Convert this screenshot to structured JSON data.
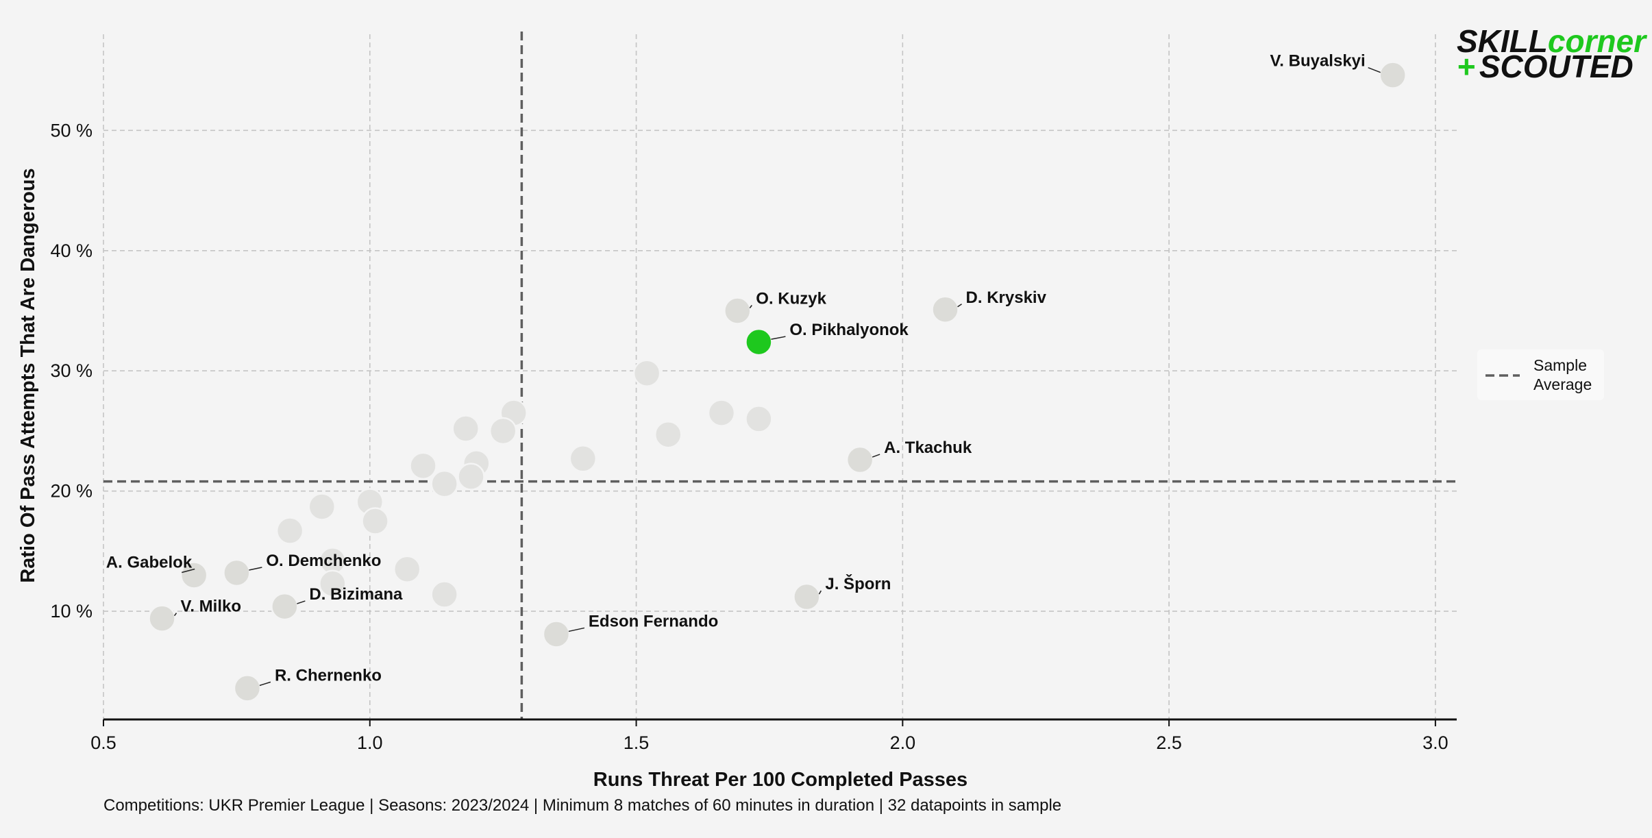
{
  "chart_data": {
    "type": "scatter",
    "xlabel": "Runs Threat Per 100 Completed Passes",
    "ylabel": "Ratio Of Pass Attempts That Are Dangerous",
    "xlim": [
      0.5,
      3.04
    ],
    "ylim": [
      1,
      58
    ],
    "x_ticks": [
      {
        "value": 0.5,
        "label": "0.5"
      },
      {
        "value": 1.0,
        "label": "1.0"
      },
      {
        "value": 1.5,
        "label": "1.5"
      },
      {
        "value": 2.0,
        "label": "2.0"
      },
      {
        "value": 2.5,
        "label": "2.5"
      },
      {
        "value": 3.0,
        "label": "3.0"
      }
    ],
    "y_ticks": [
      {
        "value": 10,
        "label": "10 %"
      },
      {
        "value": 20,
        "label": "20 %"
      },
      {
        "value": 30,
        "label": "30 %"
      },
      {
        "value": 40,
        "label": "40 %"
      },
      {
        "value": 50,
        "label": "50 %"
      }
    ],
    "grid": true,
    "sample_average": {
      "x": 1.285,
      "y": 20.8
    },
    "legend": {
      "placement": "right",
      "label_line1": "Sample",
      "label_line2": "Average"
    },
    "highlight_color": "#1ec81e",
    "labeled_points": [
      {
        "name": "V. Buyalskyi",
        "x": 2.92,
        "y": 54.6,
        "color": "#dcdcd8"
      },
      {
        "name": "O. Kuzyk",
        "x": 1.69,
        "y": 35.0,
        "color": "#dcdcd8"
      },
      {
        "name": "D. Kryskiv",
        "x": 2.08,
        "y": 35.1,
        "color": "#dcdcd8"
      },
      {
        "name": "O. Pikhalyonok",
        "x": 1.73,
        "y": 32.4,
        "color": "#1ec81e"
      },
      {
        "name": "A. Tkachuk",
        "x": 1.92,
        "y": 22.6,
        "color": "#dcdcd8"
      },
      {
        "name": "A. Gabelok",
        "x": 0.67,
        "y": 13.0,
        "color": "#dcdcd8"
      },
      {
        "name": "O. Demchenko",
        "x": 0.75,
        "y": 13.2,
        "color": "#dcdcd8"
      },
      {
        "name": "D. Bizimana",
        "x": 0.84,
        "y": 10.4,
        "color": "#dcdcd8"
      },
      {
        "name": "V. Milko",
        "x": 0.61,
        "y": 9.4,
        "color": "#dcdcd8"
      },
      {
        "name": "R. Chernenko",
        "x": 0.77,
        "y": 3.6,
        "color": "#dcdcd8"
      },
      {
        "name": "J. Šporn",
        "x": 1.82,
        "y": 11.2,
        "color": "#dcdcd8"
      },
      {
        "name": "Edson Fernando",
        "x": 1.35,
        "y": 8.1,
        "color": "#dcdcd8"
      }
    ],
    "other_points": [
      {
        "x": 1.52,
        "y": 29.8
      },
      {
        "x": 1.66,
        "y": 26.5
      },
      {
        "x": 1.73,
        "y": 26.0
      },
      {
        "x": 1.56,
        "y": 24.7
      },
      {
        "x": 1.4,
        "y": 22.7
      },
      {
        "x": 1.27,
        "y": 26.5
      },
      {
        "x": 1.25,
        "y": 25.0
      },
      {
        "x": 1.18,
        "y": 25.2
      },
      {
        "x": 1.1,
        "y": 22.1
      },
      {
        "x": 1.2,
        "y": 22.3
      },
      {
        "x": 1.14,
        "y": 20.6
      },
      {
        "x": 1.19,
        "y": 21.2
      },
      {
        "x": 1.0,
        "y": 19.1
      },
      {
        "x": 1.01,
        "y": 17.5
      },
      {
        "x": 0.91,
        "y": 18.7
      },
      {
        "x": 0.85,
        "y": 16.7
      },
      {
        "x": 0.93,
        "y": 14.2
      },
      {
        "x": 0.93,
        "y": 12.3
      },
      {
        "x": 1.07,
        "y": 13.5
      },
      {
        "x": 1.14,
        "y": 11.4
      }
    ],
    "footnote": "Competitions: UKR Premier League | Seasons: 2023/2024 | Minimum 8 matches of 60 minutes in duration | 32 datapoints in sample"
  },
  "logo": {
    "line1_a": "SKILL",
    "line1_b": "corner",
    "line2_plus": "+",
    "line2_text": "SCOUTED",
    "color_dark": "#111111",
    "color_accent": "#1ec81e"
  }
}
